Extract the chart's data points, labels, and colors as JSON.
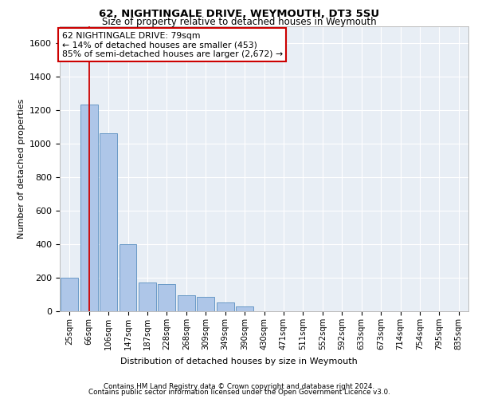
{
  "title1": "62, NIGHTINGALE DRIVE, WEYMOUTH, DT3 5SU",
  "title2": "Size of property relative to detached houses in Weymouth",
  "xlabel": "Distribution of detached houses by size in Weymouth",
  "ylabel": "Number of detached properties",
  "categories": [
    "25sqm",
    "66sqm",
    "106sqm",
    "147sqm",
    "187sqm",
    "228sqm",
    "268sqm",
    "309sqm",
    "349sqm",
    "390sqm",
    "430sqm",
    "471sqm",
    "511sqm",
    "552sqm",
    "592sqm",
    "633sqm",
    "673sqm",
    "714sqm",
    "754sqm",
    "795sqm",
    "835sqm"
  ],
  "values": [
    200,
    1230,
    1060,
    400,
    170,
    160,
    95,
    85,
    50,
    30,
    0,
    0,
    0,
    0,
    0,
    0,
    0,
    0,
    0,
    0,
    0
  ],
  "bar_color": "#aec6e8",
  "bar_edge_color": "#5a8fc0",
  "vline_x_index": 1,
  "vline_color": "#cc0000",
  "annotation_text": "62 NIGHTINGALE DRIVE: 79sqm\n← 14% of detached houses are smaller (453)\n85% of semi-detached houses are larger (2,672) →",
  "annotation_box_color": "#ffffff",
  "annotation_box_edge": "#cc0000",
  "ylim": [
    0,
    1700
  ],
  "yticks": [
    0,
    200,
    400,
    600,
    800,
    1000,
    1200,
    1400,
    1600
  ],
  "plot_bg_color": "#e8eef5",
  "footer1": "Contains HM Land Registry data © Crown copyright and database right 2024.",
  "footer2": "Contains public sector information licensed under the Open Government Licence v3.0."
}
